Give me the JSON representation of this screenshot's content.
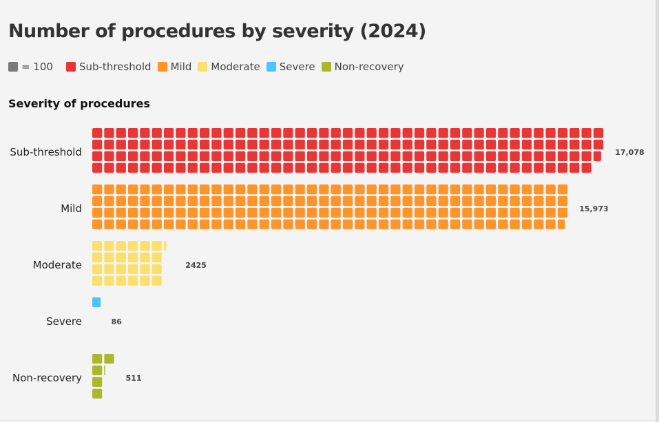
{
  "chart_data": {
    "type": "waffle",
    "title": "Number of procedures by severity (2024)",
    "subtitle": "Severity of procedures",
    "unit_per_square": 100,
    "unit_label": "= 100",
    "rows_per_group": 4,
    "fill_order": "column-major",
    "unit_color": "#7a7a7a",
    "legend": [
      {
        "label": "Sub-threshold",
        "color": "#e83535"
      },
      {
        "label": "Mild",
        "color": "#ff9429"
      },
      {
        "label": "Moderate",
        "color": "#fbe06e"
      },
      {
        "label": "Severe",
        "color": "#4dc3ff"
      },
      {
        "label": "Non-recovery",
        "color": "#aab82e"
      }
    ],
    "categories": [
      "Sub-threshold",
      "Mild",
      "Moderate",
      "Severe",
      "Non-recovery"
    ],
    "values": [
      17078,
      15973,
      2425,
      86,
      511
    ],
    "value_labels": [
      "17,078",
      "15,973",
      "2425",
      "86",
      "511"
    ],
    "colors": [
      "#e83535",
      "#ff9429",
      "#fbe06e",
      "#4dc3ff",
      "#aab82e"
    ]
  }
}
